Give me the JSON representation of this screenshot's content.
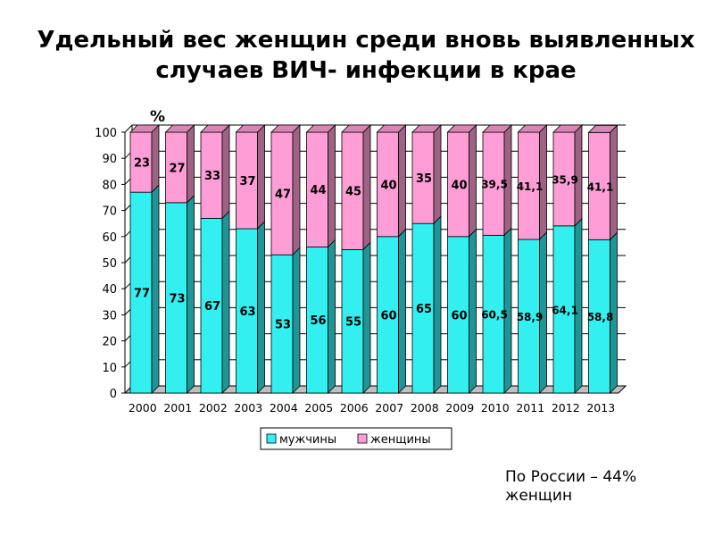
{
  "title": {
    "line1": "Удельный вес  женщин среди вновь выявленных",
    "line2": "случаев ВИЧ- инфекции в крае"
  },
  "chart_data": {
    "type": "bar",
    "stacked": true,
    "three_d": true,
    "y_unit_label": "%",
    "ylim": [
      0,
      100
    ],
    "y_ticks": [
      "0",
      "10",
      "20",
      "30",
      "40",
      "50",
      "60",
      "70",
      "80",
      "90",
      "100"
    ],
    "grid": true,
    "legend_position": "bottom",
    "categories": [
      "2000",
      "2001",
      "2002",
      "2003",
      "2004",
      "2005",
      "2006",
      "2007",
      "2008",
      "2009",
      "2010",
      "2011",
      "2012",
      "2013"
    ],
    "series": [
      {
        "name": "мужчины",
        "color": "#33f0f0",
        "values": [
          77,
          73,
          67,
          63,
          53,
          56,
          55,
          60,
          65,
          60,
          60.5,
          58.9,
          64.1,
          58.8
        ],
        "labels": [
          "77",
          "73",
          "67",
          "63",
          "53",
          "56",
          "55",
          "60",
          "65",
          "60",
          "60,5",
          "58,9",
          "64,1",
          "58,8"
        ]
      },
      {
        "name": "женщины",
        "color": "#ff9ed6",
        "values": [
          23,
          27,
          33,
          37,
          47,
          44,
          45,
          40,
          35,
          40,
          39.5,
          41.1,
          35.9,
          41.1
        ],
        "labels": [
          "23",
          "27",
          "33",
          "37",
          "47",
          "44",
          "45",
          "40",
          "35",
          "40",
          "39,5",
          "41,1",
          "35,9",
          "41,1"
        ]
      }
    ]
  },
  "note": {
    "line1": "По России – 44%",
    "line2": "женщин"
  }
}
